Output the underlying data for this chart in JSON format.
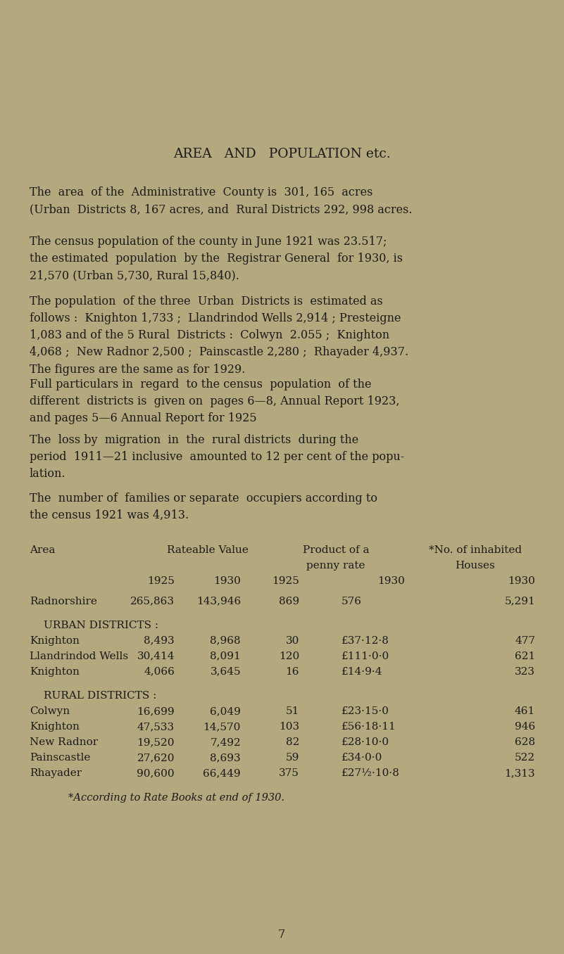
{
  "bg_color": "#b3a87e",
  "text_color": "#1a1a1a",
  "title": "AREA   AND   POPULATION etc.",
  "p1": "The  area  of the  Administrative  County is  301, 165  acres\n(Urban  Districts 8, 167 acres, and  Rural Districts 292, 998 acres.",
  "p2": "The census population of the county in June 1921 was 23.517;\nthe estimated  population  by the  Registrar General  for 1930, is\n21,570 (Urban 5,730, Rural 15,840).",
  "p3": "The population  of the three  Urban  Districts is  estimated as\nfollows :  Knighton 1,733 ;  Llandrindod Wells 2,914 ; Presteigne\n1,083 and of the 5 Rural  Districts :  Colwyn  2.055 ;  Knighton\n4,068 ;  New Radnor 2,500 ;  Painscastle 2,280 ;  Rhayader 4,937.\nThe figures are the same as for 1929.",
  "p4": "Full particulars in  regard  to the census  population  of the\ndifferent  districts is  given on  pages 6—8, Annual Report 1923,\nand pages 5—6 Annual Report for 1925",
  "p5": "The  loss by  migration  in  the  rural districts  during the\nperiod  1911—21 inclusive  amounted to 12 per cent of the popu-\nlation.",
  "p6": "The  number of  families or separate  occupiers according to\nthe census 1921 was 4,913.",
  "footnote": "*According to Rate Books at end of 1930.",
  "page_number": "7"
}
